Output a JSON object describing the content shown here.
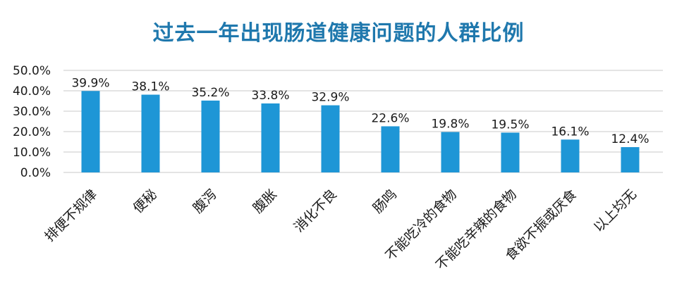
{
  "chart_data": {
    "type": "bar",
    "title": "过去一年出现肠道健康问题的人群比例",
    "categories": [
      "排便不规律",
      "便秘",
      "腹泻",
      "腹胀",
      "消化不良",
      "肠鸣",
      "不能吃冷的食物",
      "不能吃辛辣的食物",
      "食欲不振或厌食",
      "以上均无"
    ],
    "values": [
      39.9,
      38.1,
      35.2,
      33.8,
      32.9,
      22.6,
      19.8,
      19.5,
      16.1,
      12.4
    ],
    "value_labels": [
      "39.9%",
      "38.1%",
      "35.2%",
      "33.8%",
      "32.9%",
      "22.6%",
      "19.8%",
      "19.5%",
      "16.1%",
      "12.4%"
    ],
    "y_ticks": [
      0,
      10,
      20,
      30,
      40,
      50
    ],
    "y_tick_labels": [
      "0.0%",
      "10.0%",
      "20.0%",
      "30.0%",
      "40.0%",
      "50.0%"
    ],
    "ylim": [
      0,
      50
    ],
    "xlabel": "",
    "ylabel": "",
    "grid": true,
    "colors": {
      "bar": "#1e96d6",
      "title": "#1f78ad",
      "grid": "#c8c8c8",
      "highlight_label": "#3a52b0"
    },
    "highlight_categories": [
      3,
      5
    ]
  }
}
